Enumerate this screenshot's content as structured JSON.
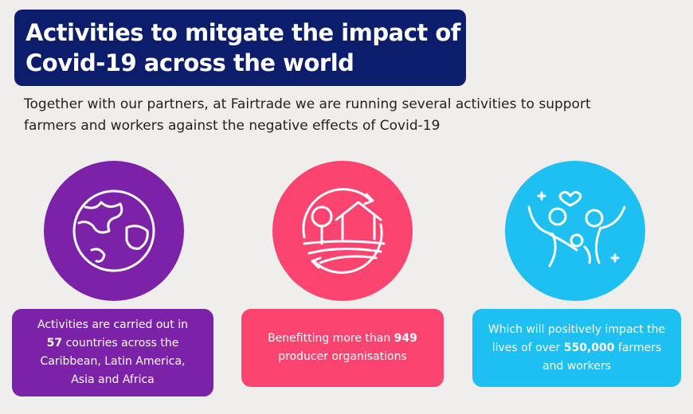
{
  "header": {
    "title": [
      "Activities to mitgate the impact of",
      "Covid-19 across the world"
    ]
  },
  "intro": [
    "Together with our partners, at Fairtrade we are running several activities to support",
    "farmers and workers against the negative effects of Covid-19"
  ],
  "cards": [
    {
      "before": "Activities are carried out in",
      "number": "57",
      "after": "countries across  the Caribbean, Latin America, Asia and Africa"
    },
    {
      "before": "Benefitting more than",
      "number": "949",
      "after": "producer organisations"
    },
    {
      "before": "Which will positively impact the lives of over",
      "number": "550,000",
      "after": "farmers and workers"
    }
  ]
}
